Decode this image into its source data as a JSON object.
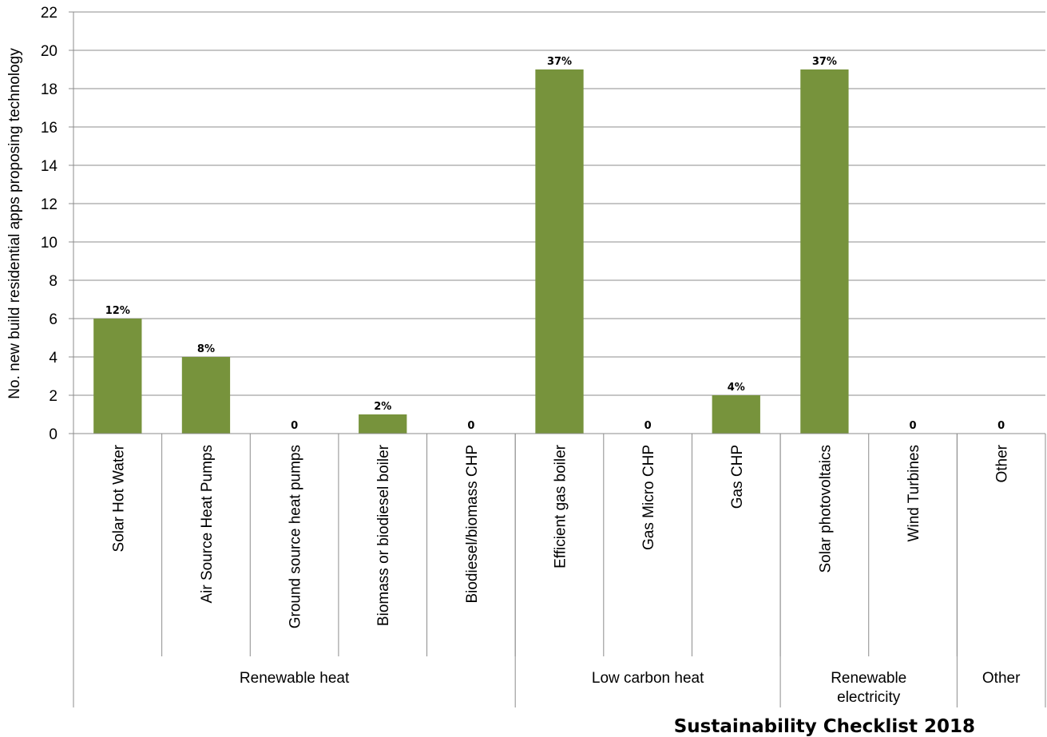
{
  "chart_data": {
    "type": "bar",
    "ylabel": "No. new build residential apps proposing technology",
    "xlabel": "",
    "ylim": [
      0,
      22
    ],
    "yticks": [
      0,
      2,
      4,
      6,
      8,
      10,
      12,
      14,
      16,
      18,
      20,
      22
    ],
    "grid": true,
    "bar_color": "#77933C",
    "categories": [
      "Solar Hot Water",
      "Air Source Heat Pumps",
      "Ground source heat pumps",
      "Biomass or biodiesel boiler",
      "Biodiesel/biomass CHP",
      "Efficient gas boiler",
      "Gas Micro CHP",
      "Gas CHP",
      "Solar photovoltaics",
      "Wind Turbines",
      "Other"
    ],
    "values": [
      6,
      4,
      0,
      1,
      0,
      19,
      0,
      2,
      19,
      0,
      0
    ],
    "data_labels": [
      "12%",
      "8%",
      "0",
      "2%",
      "0",
      "37%",
      "0",
      "4%",
      "37%",
      "0",
      "0"
    ],
    "groups": [
      {
        "label": "Renewable heat",
        "span": 5
      },
      {
        "label": "Low carbon heat",
        "span": 3
      },
      {
        "label": "Renewable electricity",
        "span": 2
      },
      {
        "label": "Other",
        "span": 1
      }
    ]
  },
  "footer": {
    "text": "Sustainability Checklist 2018"
  }
}
